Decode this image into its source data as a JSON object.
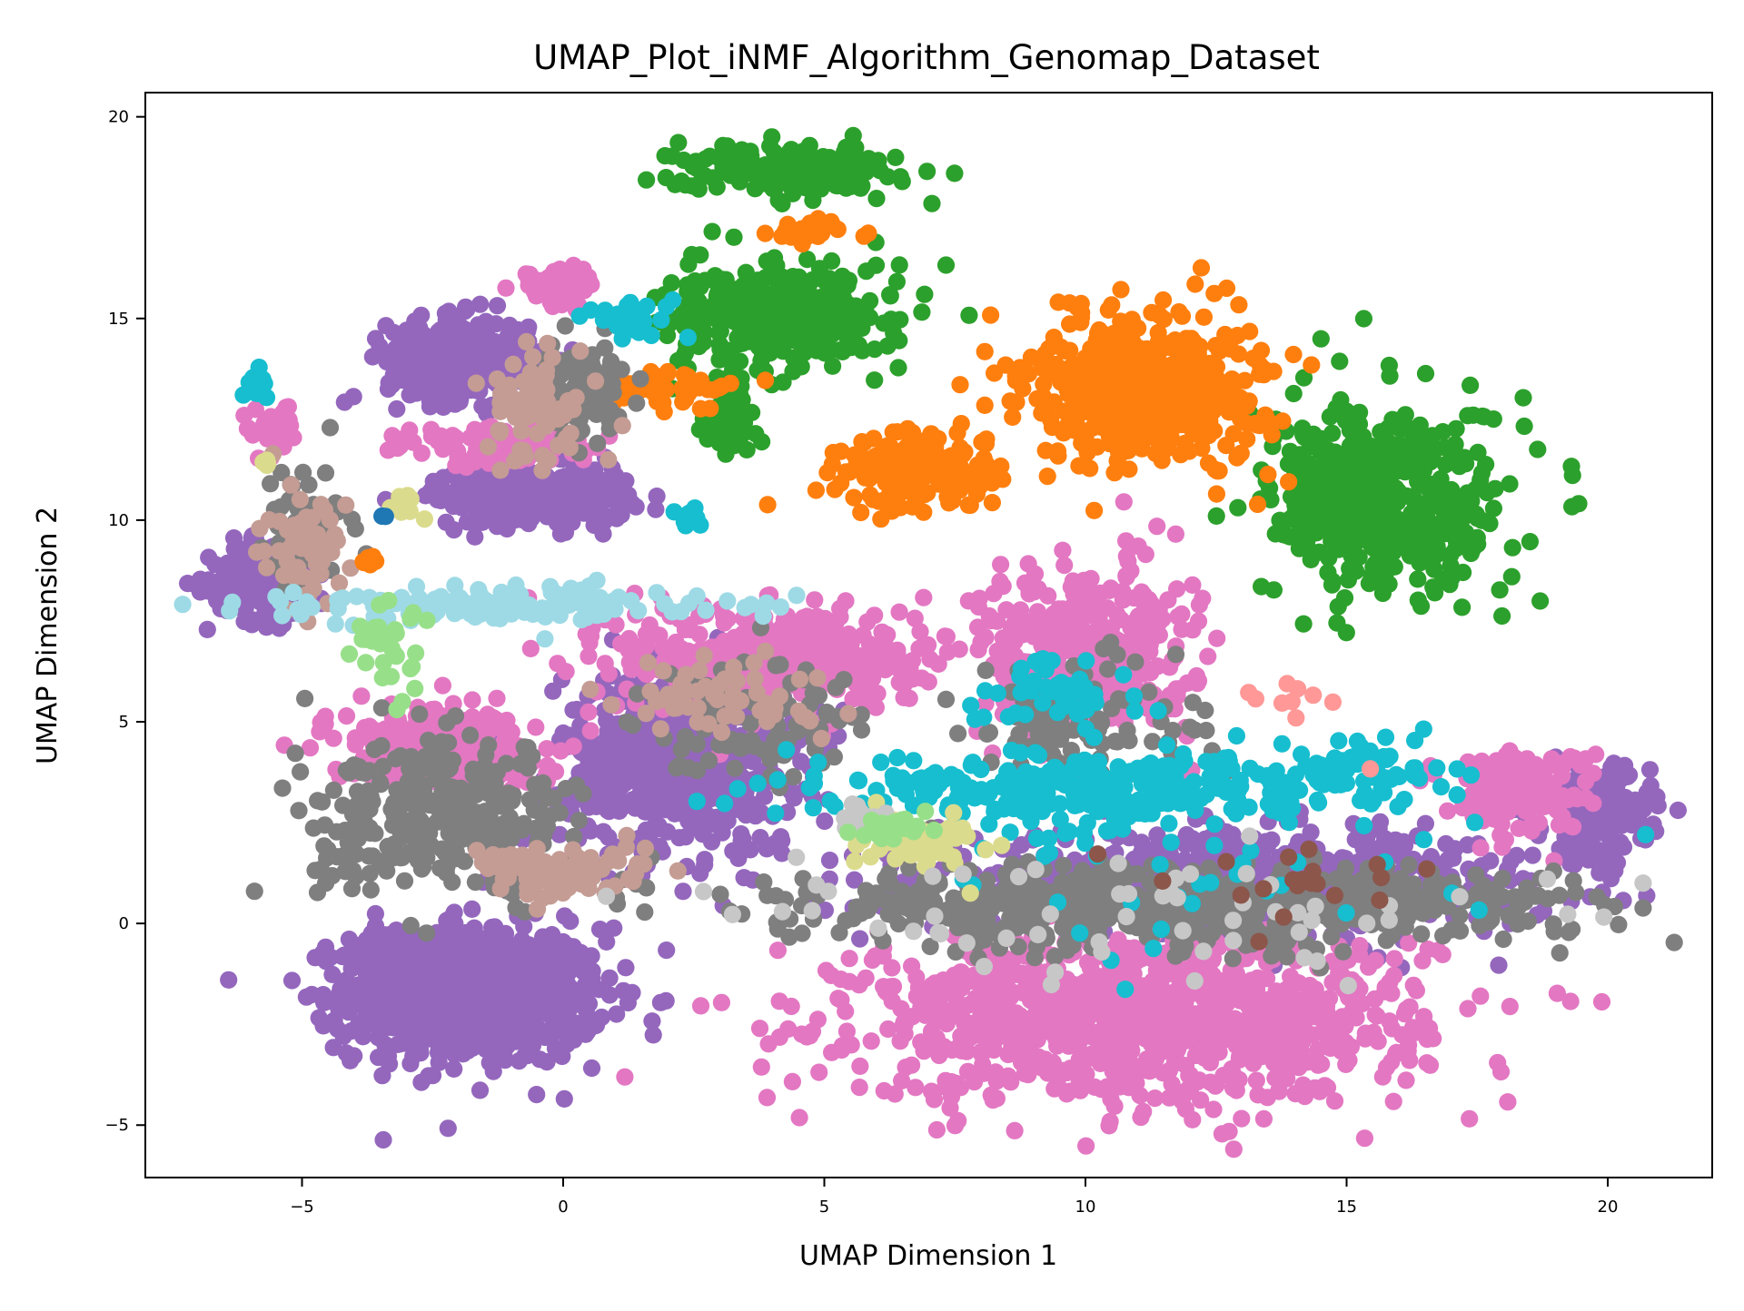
{
  "chart_data": {
    "type": "scatter",
    "title": "UMAP_Plot_iNMF_Algorithm_Genomap_Dataset",
    "xlabel": "UMAP Dimension 1",
    "ylabel": "UMAP Dimension 2",
    "xlim": [
      -8,
      22
    ],
    "ylim": [
      -6.3,
      20.6
    ],
    "xticks": [
      -5,
      0,
      5,
      10,
      15,
      20
    ],
    "yticks": [
      -5,
      0,
      5,
      10,
      15,
      20
    ],
    "xtick_labels": [
      "−5",
      "0",
      "5",
      "10",
      "15",
      "20"
    ],
    "ytick_labels": [
      "−5",
      "0",
      "5",
      "10",
      "15",
      "20"
    ],
    "grid": false,
    "legend": false,
    "marker_size": 4,
    "clusters": [
      {
        "color": "#9467bd",
        "cx": -1.6,
        "cy": -1.8,
        "sx": 1.4,
        "sy": 1.0,
        "n": 700
      },
      {
        "color": "#9467bd",
        "cx": -2.8,
        "cy": -1.6,
        "sx": 0.9,
        "sy": 0.9,
        "n": 300
      },
      {
        "color": "#9467bd",
        "cx": -5.6,
        "cy": 8.5,
        "sx": 0.7,
        "sy": 0.6,
        "n": 220
      },
      {
        "color": "#9467bd",
        "cx": -2.0,
        "cy": 14.0,
        "sx": 0.8,
        "sy": 0.6,
        "n": 320
      },
      {
        "color": "#9467bd",
        "cx": -0.6,
        "cy": 10.6,
        "sx": 1.1,
        "sy": 0.45,
        "n": 260
      },
      {
        "color": "#9467bd",
        "cx": 2.2,
        "cy": 4.0,
        "sx": 1.3,
        "sy": 1.3,
        "n": 650
      },
      {
        "color": "#9467bd",
        "cx": 19.8,
        "cy": 2.7,
        "sx": 0.6,
        "sy": 0.7,
        "n": 180
      },
      {
        "color": "#9467bd",
        "cx": 13.0,
        "cy": 1.0,
        "sx": 3.5,
        "sy": 0.7,
        "n": 700
      },
      {
        "color": "#e377c2",
        "cx": 11.0,
        "cy": -2.3,
        "sx": 3.2,
        "sy": 1.2,
        "n": 1100
      },
      {
        "color": "#e377c2",
        "cx": 10.0,
        "cy": 6.8,
        "sx": 1.2,
        "sy": 1.3,
        "n": 360
      },
      {
        "color": "#e377c2",
        "cx": 4.0,
        "cy": 6.6,
        "sx": 1.7,
        "sy": 0.8,
        "n": 420
      },
      {
        "color": "#e377c2",
        "cx": -2.5,
        "cy": 4.4,
        "sx": 1.2,
        "sy": 0.6,
        "n": 260
      },
      {
        "color": "#e377c2",
        "cx": 18.3,
        "cy": 3.3,
        "sx": 0.8,
        "sy": 0.6,
        "n": 170
      },
      {
        "color": "#e377c2",
        "cx": -0.1,
        "cy": 15.8,
        "sx": 0.4,
        "sy": 0.3,
        "n": 70
      },
      {
        "color": "#e377c2",
        "cx": -1.2,
        "cy": 11.8,
        "sx": 1.2,
        "sy": 0.3,
        "n": 80
      },
      {
        "color": "#e377c2",
        "cx": -5.6,
        "cy": 12.2,
        "sx": 0.3,
        "sy": 0.4,
        "n": 40
      },
      {
        "color": "#2ca02c",
        "cx": 15.8,
        "cy": 10.5,
        "sx": 1.3,
        "sy": 1.4,
        "n": 520
      },
      {
        "color": "#2ca02c",
        "cx": 4.3,
        "cy": 18.7,
        "sx": 1.2,
        "sy": 0.35,
        "n": 200
      },
      {
        "color": "#2ca02c",
        "cx": 4.2,
        "cy": 15.0,
        "sx": 1.3,
        "sy": 0.8,
        "n": 320
      },
      {
        "color": "#2ca02c",
        "cx": 3.2,
        "cy": 12.8,
        "sx": 0.3,
        "sy": 0.6,
        "n": 60
      },
      {
        "color": "#ff7f0e",
        "cx": 11.2,
        "cy": 13.3,
        "sx": 1.3,
        "sy": 1.1,
        "n": 520
      },
      {
        "color": "#ff7f0e",
        "cx": 6.8,
        "cy": 11.2,
        "sx": 1.1,
        "sy": 0.6,
        "n": 150
      },
      {
        "color": "#ff7f0e",
        "cx": 2.0,
        "cy": 13.3,
        "sx": 0.9,
        "sy": 0.25,
        "n": 60
      },
      {
        "color": "#ff7f0e",
        "cx": 4.8,
        "cy": 17.1,
        "sx": 0.4,
        "sy": 0.2,
        "n": 25
      },
      {
        "color": "#7f7f7f",
        "cx": 11.5,
        "cy": 0.4,
        "sx": 4.5,
        "sy": 0.6,
        "n": 650
      },
      {
        "color": "#7f7f7f",
        "cx": -2.2,
        "cy": 2.6,
        "sx": 1.5,
        "sy": 1.1,
        "n": 320
      },
      {
        "color": "#7f7f7f",
        "cx": 3.8,
        "cy": 5.2,
        "sx": 1.4,
        "sy": 0.8,
        "n": 90
      },
      {
        "color": "#7f7f7f",
        "cx": 0.3,
        "cy": 13.2,
        "sx": 0.5,
        "sy": 0.8,
        "n": 80
      },
      {
        "color": "#7f7f7f",
        "cx": -4.8,
        "cy": 9.8,
        "sx": 0.5,
        "sy": 0.9,
        "n": 50
      },
      {
        "color": "#7f7f7f",
        "cx": 10.0,
        "cy": 5.0,
        "sx": 1.4,
        "sy": 1.0,
        "n": 90
      },
      {
        "color": "#17becf",
        "cx": 10.0,
        "cy": 3.3,
        "sx": 2.8,
        "sy": 0.5,
        "n": 340
      },
      {
        "color": "#17becf",
        "cx": 15.3,
        "cy": 3.8,
        "sx": 1.0,
        "sy": 0.5,
        "n": 70
      },
      {
        "color": "#17becf",
        "cx": 9.5,
        "cy": 5.8,
        "sx": 0.9,
        "sy": 0.6,
        "n": 50
      },
      {
        "color": "#17becf",
        "cx": 1.3,
        "cy": 14.9,
        "sx": 0.5,
        "sy": 0.3,
        "n": 30
      },
      {
        "color": "#17becf",
        "cx": -5.8,
        "cy": 13.4,
        "sx": 0.15,
        "sy": 0.2,
        "n": 15
      },
      {
        "color": "#17becf",
        "cx": 2.4,
        "cy": 10.1,
        "sx": 0.2,
        "sy": 0.15,
        "n": 10
      },
      {
        "color": "#17becf",
        "cx": 12.0,
        "cy": 1.5,
        "sx": 3.5,
        "sy": 1.2,
        "n": 40
      },
      {
        "color": "#c49c94",
        "cx": 0.0,
        "cy": 1.3,
        "sx": 1.0,
        "sy": 0.4,
        "n": 90
      },
      {
        "color": "#c49c94",
        "cx": -0.4,
        "cy": 12.8,
        "sx": 0.6,
        "sy": 0.8,
        "n": 80
      },
      {
        "color": "#c49c94",
        "cx": -4.9,
        "cy": 9.4,
        "sx": 0.5,
        "sy": 0.9,
        "n": 60
      },
      {
        "color": "#c49c94",
        "cx": 3.0,
        "cy": 5.6,
        "sx": 1.2,
        "sy": 0.6,
        "n": 60
      },
      {
        "color": "#9edae5",
        "cx": -1.2,
        "cy": 7.9,
        "sx": 2.4,
        "sy": 0.25,
        "n": 150
      },
      {
        "color": "#dbdb8d",
        "cx": 6.9,
        "cy": 2.0,
        "sx": 0.8,
        "sy": 0.4,
        "n": 60
      },
      {
        "color": "#dbdb8d",
        "cx": -3.0,
        "cy": 10.5,
        "sx": 0.3,
        "sy": 0.2,
        "n": 10
      },
      {
        "color": "#dbdb8d",
        "cx": -5.7,
        "cy": 11.4,
        "sx": 0.1,
        "sy": 0.1,
        "n": 4
      },
      {
        "color": "#c7c7c7",
        "cx": 11.0,
        "cy": 0.4,
        "sx": 4.5,
        "sy": 1.0,
        "n": 60
      },
      {
        "color": "#c7c7c7",
        "cx": 5.6,
        "cy": 2.6,
        "sx": 0.3,
        "sy": 0.2,
        "n": 15
      },
      {
        "color": "#98df8a",
        "cx": -3.3,
        "cy": 6.8,
        "sx": 0.4,
        "sy": 0.8,
        "n": 30
      },
      {
        "color": "#98df8a",
        "cx": 6.2,
        "cy": 2.4,
        "sx": 0.4,
        "sy": 0.2,
        "n": 20
      },
      {
        "color": "#ff9896",
        "cx": 14.2,
        "cy": 5.0,
        "sx": 1.0,
        "sy": 1.0,
        "n": 10
      },
      {
        "color": "#8c564b",
        "cx": 14.0,
        "cy": 1.0,
        "sx": 2.5,
        "sy": 0.6,
        "n": 20
      },
      {
        "color": "#1f77b4",
        "cx": -3.4,
        "cy": 10.1,
        "sx": 0.05,
        "sy": 0.05,
        "n": 2
      },
      {
        "color": "#ff7f0e",
        "cx": -3.7,
        "cy": 9.0,
        "sx": 0.15,
        "sy": 0.1,
        "n": 8
      }
    ]
  }
}
